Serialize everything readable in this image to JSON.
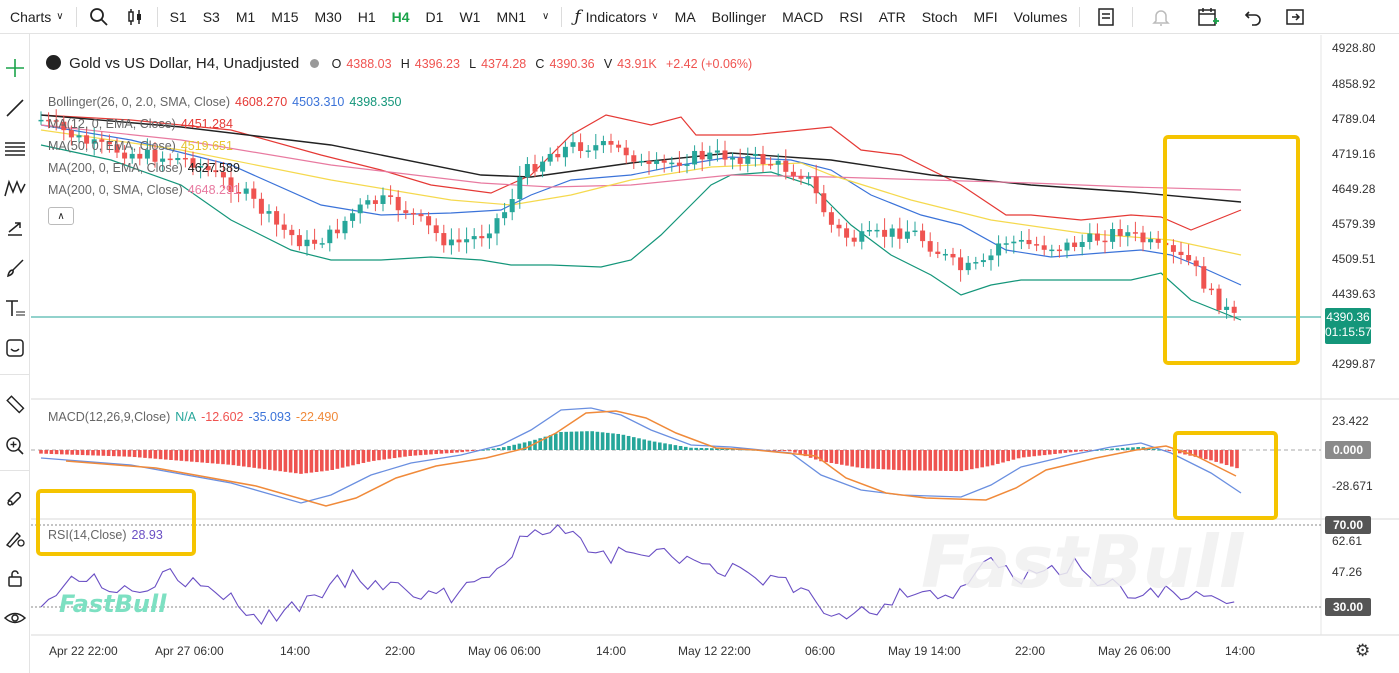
{
  "toolbar": {
    "charts_label": "Charts",
    "timeframes": [
      "S1",
      "S3",
      "M1",
      "M15",
      "M30",
      "H1",
      "H4",
      "D1",
      "W1",
      "MN1"
    ],
    "active_timeframe": "H4",
    "indicators_label": "Indicators",
    "quick_indicators": [
      "MA",
      "Bollinger",
      "MACD",
      "RSI",
      "ATR",
      "Stoch",
      "MFI",
      "Volumes"
    ]
  },
  "symbol": {
    "title": "Gold vs US Dollar, H4, Unadjusted",
    "o_label": "O",
    "o_value": "4388.03",
    "h_label": "H",
    "h_value": "4396.23",
    "l_label": "L",
    "l_value": "4374.28",
    "c_label": "C",
    "c_value": "4390.36",
    "v_label": "V",
    "v_value": "43.91K",
    "change": "+2.42 (+0.06%)"
  },
  "indicators": {
    "bollinger": {
      "label": "Bollinger(26, 0, 2.0, SMA, Close)",
      "v1": "4608.270",
      "v2": "4503.310",
      "v3": "4398.350"
    },
    "ma12": {
      "label": "MA(12, 0, EMA, Close)",
      "v": "4451.284"
    },
    "ma50": {
      "label": "MA(50, 0, EMA, Close)",
      "v": "4519.651"
    },
    "ma200ema": {
      "label": "MA(200, 0, EMA, Close)",
      "v": "4627.589"
    },
    "ma200sma": {
      "label": "MA(200, 0, SMA, Close)",
      "v": "4648.291"
    },
    "macd": {
      "label": "MACD(12,26,9,Close)",
      "v1": "N/A",
      "v2": "-12.602",
      "v3": "-35.093",
      "v4": "-22.490"
    },
    "rsi": {
      "label": "RSI(14,Close)",
      "v": "28.93"
    }
  },
  "price_axis": [
    "4928.80",
    "4858.92",
    "4789.04",
    "4719.16",
    "4649.28",
    "4579.39",
    "4509.51",
    "4439.63",
    "4299.87"
  ],
  "current_price": {
    "price": "4390.36",
    "countdown": "01:15:57"
  },
  "macd_axis": [
    "23.422",
    "0.000",
    "-28.671"
  ],
  "rsi_axis": [
    "70.00",
    "62.61",
    "47.26",
    "30.00"
  ],
  "time_axis": [
    "Apr 22 22:00",
    "Apr 27 06:00",
    "14:00",
    "22:00",
    "May 06 06:00",
    "14:00",
    "May 12 22:00",
    "06:00",
    "May 19 14:00",
    "22:00",
    "May 26 06:00",
    "14:00"
  ],
  "watermark": "FastBull",
  "colors": {
    "up": "#26a69a",
    "down": "#ef5350",
    "accent": "#1aa34a",
    "highlight": "#f5c400",
    "ma200": "#222222",
    "bb_upper": "#e53935",
    "bb_mid": "#3b73d9",
    "bb_lower": "#14967a",
    "ma50": "#f5d94e",
    "ma200sma": "#e87aa0",
    "macd_line": "#6a8fe0",
    "signal_line": "#f08a3a",
    "rsi_line": "#6a4fc4"
  }
}
